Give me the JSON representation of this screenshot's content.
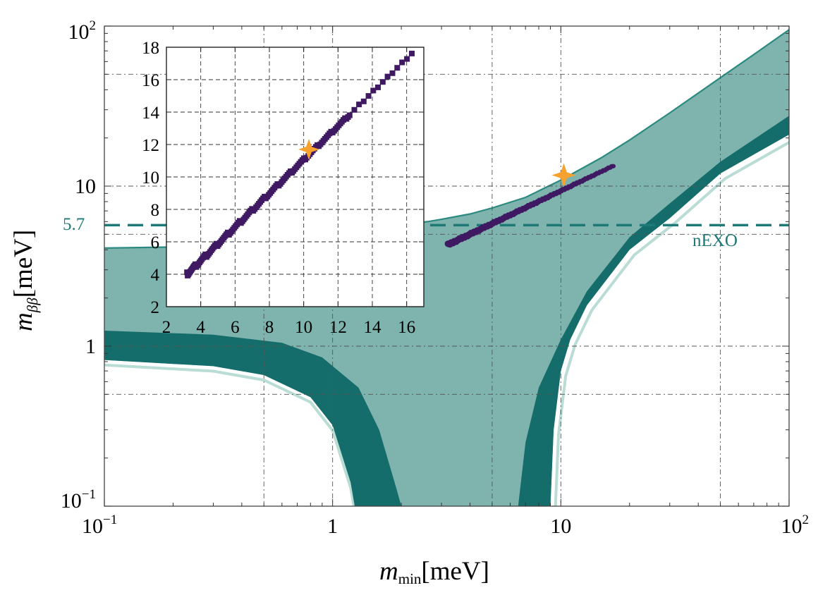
{
  "colors": {
    "light_band": "#7fb3ad",
    "dark_band": "#156d6b",
    "band_edge": "#2a8a80",
    "faint_edge": "#b9dcd4",
    "scatter": "#3f1a63",
    "star": "#f7a12e",
    "grid": "#555555",
    "annotation": "#1d7a77"
  },
  "chart_data": [
    {
      "id": "main",
      "type": "area",
      "xscale": "log",
      "yscale": "log",
      "xlim": [
        0.1,
        100
      ],
      "ylim": [
        0.1,
        100
      ],
      "xlabel": "m_min[meV]",
      "ylabel": "m_ββ[meV]",
      "x_major_ticks": [
        0.1,
        1,
        10,
        100
      ],
      "y_major_ticks": [
        0.1,
        1,
        10,
        100
      ],
      "x_tick_labels": [
        {
          "mantissa": "10",
          "exp": "−1"
        },
        {
          "mantissa": "1",
          "exp": ""
        },
        {
          "mantissa": "10",
          "exp": ""
        },
        {
          "mantissa": "10",
          "exp": "2"
        }
      ],
      "y_tick_labels": [
        {
          "mantissa": "10",
          "exp": "−1"
        },
        {
          "mantissa": "1",
          "exp": ""
        },
        {
          "mantissa": "10",
          "exp": ""
        },
        {
          "mantissa": "10",
          "exp": "2"
        }
      ],
      "x_grid": [
        0.5,
        1,
        5,
        10,
        50
      ],
      "y_grid": [
        0.5,
        1,
        5,
        10,
        50
      ],
      "grid": true,
      "bands": {
        "normal_ordering_outer": {
          "x": [
            0.1,
            0.3,
            0.5,
            0.8,
            1.2,
            1.7,
            2.2,
            2.6,
            3.0,
            4.0,
            5.0,
            7.0,
            10.0,
            15.0,
            20.0,
            30.0,
            50.0,
            70.0,
            100.0
          ],
          "upper": [
            4.1,
            4.2,
            4.35,
            4.55,
            4.9,
            5.5,
            5.85,
            6.0,
            6.2,
            6.7,
            7.3,
            8.5,
            10.9,
            15.0,
            19.4,
            28.7,
            47.6,
            66.4,
            95.0
          ],
          "lower_left_x": [
            0.1,
            0.3,
            0.5,
            0.8,
            1.0,
            1.2,
            1.25
          ],
          "lower_left_y": [
            0.82,
            0.75,
            0.66,
            0.48,
            0.32,
            0.14,
            0.1
          ],
          "lower_right_x": [
            9.0,
            9.3,
            10.0,
            11.0,
            13.0,
            20.0,
            30.0,
            50.0,
            100.0
          ],
          "lower_right_y": [
            0.1,
            0.3,
            0.7,
            1.1,
            1.8,
            4.0,
            6.3,
            12.0,
            21.0
          ]
        },
        "dark_band": {
          "upper_left_x": [
            0.1,
            0.3,
            0.6,
            0.9,
            1.3,
            1.6,
            1.9,
            2.0
          ],
          "upper_left_y": [
            1.25,
            1.18,
            1.05,
            0.85,
            0.55,
            0.3,
            0.13,
            0.1
          ],
          "lower_left_x": [
            0.1,
            0.3,
            0.5,
            0.8,
            1.0,
            1.2,
            1.25
          ],
          "lower_left_y": [
            0.82,
            0.75,
            0.66,
            0.48,
            0.32,
            0.14,
            0.1
          ],
          "inner_right_x": [
            6.5,
            7.0,
            8.0,
            10.0,
            13.0,
            20.0,
            30.0,
            50.0,
            100.0
          ],
          "inner_right_y": [
            0.1,
            0.25,
            0.55,
            1.1,
            2.2,
            4.8,
            7.8,
            14.2,
            27.5
          ],
          "outer_right_x": [
            9.0,
            9.3,
            10.0,
            11.0,
            13.0,
            20.0,
            30.0,
            50.0,
            100.0
          ],
          "outer_right_y": [
            0.1,
            0.3,
            0.7,
            1.1,
            1.8,
            4.0,
            6.3,
            12.0,
            21.0
          ]
        }
      },
      "reference_line": {
        "y": 5.7,
        "label": "nEXO",
        "axis_label": "5.7"
      },
      "scatter_segment": {
        "x_start": 3.2,
        "y_start": 4.3,
        "x_end": 17.0,
        "y_end": 13.4,
        "point_count": 160
      },
      "benchmark": {
        "x": 10.3,
        "y": 11.7
      }
    },
    {
      "id": "inset",
      "type": "scatter",
      "xlim": [
        2,
        17
      ],
      "ylim": [
        2,
        18
      ],
      "x_ticks": [
        2,
        4,
        6,
        8,
        10,
        12,
        14,
        16
      ],
      "y_ticks": [
        2,
        4,
        6,
        8,
        10,
        12,
        14,
        16,
        18
      ],
      "grid": true,
      "trend": {
        "x_start": 3.2,
        "y_start": 4.0,
        "x_end": 16.3,
        "y_end": 17.6
      },
      "point_count": 160,
      "benchmark": {
        "x": 10.3,
        "y": 11.7
      }
    }
  ]
}
